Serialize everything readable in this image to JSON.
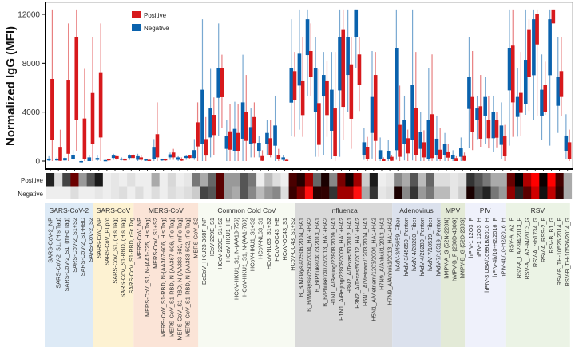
{
  "chart_data": {
    "type": "box",
    "ylabel": "Normalized IgG (MFI)",
    "ylim": [
      -650,
      13000
    ],
    "yticks": [
      0,
      4000,
      8000,
      12000
    ],
    "legend": {
      "placement": "top-left-inside",
      "entries": [
        {
          "name": "Positive",
          "color": "#d7191c"
        },
        {
          "name": "Negative",
          "color": "#0a62ad"
        }
      ]
    },
    "heatmap_rows": [
      "Positive",
      "Negative"
    ],
    "groups": [
      {
        "name": "SARS-CoV-2",
        "count": 6,
        "color": "#ddeaf6"
      },
      {
        "name": "SARS-CoV",
        "count": 5,
        "color": "#fdf2d2"
      },
      {
        "name": "MERS-CoV",
        "count": 8,
        "color": "#fbe4d7"
      },
      {
        "name": "Common Cold CoV",
        "count": 12,
        "color": "#f7faf2"
      },
      {
        "name": "Influenza",
        "count": 12,
        "color": "#d9d9d9"
      },
      {
        "name": "Adenovirus",
        "count": 6,
        "color": "#dbe1ed"
      },
      {
        "name": "MPV",
        "count": 3,
        "color": "#e3ead7"
      },
      {
        "name": "PIV",
        "count": 5,
        "color": "#eff1fb"
      },
      {
        "name": "RSV",
        "count": 8,
        "color": "#ebf3e5"
      }
    ],
    "categories": [
      "SARS-CoV-2_NP",
      "SARS-CoV-2_S1, (His Tag)",
      "SARS-CoV-2_S1, (mFc Tag)",
      "SARS-CoV-2_S1+S2",
      "SARS-CoV-2_S1-RBD",
      "SARS-CoV-2_S2",
      "SARS-CoV_NP",
      "SARS-CoV_PLpro",
      "SARS-CoV_S1, (His Tag)",
      "SARS-CoV_S1-RBD, (His Tag)",
      "SARS-CoV_S1-RBD, rFc Tag",
      "MERS-CoV_NP",
      "MERS-CoV_S1, N-(AA1-725, His Tag)",
      "MERS-CoV_S1+S2",
      "MERS-CoV_S1-RBD, N-(AA367-606, His Tag)",
      "MERS-CoV_S1-RBD, N-(AA367-606, rFc Tag)",
      "MERS-CoV_S1-RBD, N-(AA383-502, mFc Tag)",
      "MERS-CoV_S1-RBD, N-(AA383-502, rFc Tag)",
      "MERS-CoV_S2",
      "DcCoV_HKU23-368F_NP",
      "HCoV-229E_S1",
      "HCoV-229E_S1+S2",
      "HCoV-HKU1_HE",
      "HCoV-HKU1_S1, N-(AA13-756)",
      "HCoV-HKU1_S1, N-(AA1-760)",
      "HCoV-HKU1_S1+S2",
      "HCoV-NL63_S1",
      "HCoV-NL63_S1+S2",
      "HCoV-OC43_HE",
      "HCoV-OC43_S1",
      "HCoV-OC43_S1+S2",
      "B_B/Malaysia/2506/2004_HA1",
      "B_B/Malaysia/2506/2004_HA1+HA2",
      "B_B/Phuket/3073/2013_HA1",
      "B_B/Phuket/3073/2013_HA1+HA2",
      "H1N1_A/Beijing/22808/2009_HA1",
      "H1N1_A/Beijing/22808/2009_HA1+HA2",
      "H3N2_A/Texas/50/2012_HA1",
      "H3N2_A/Texas/50/2012_HA1+HA2",
      "H5N1_A/Vietnam/1203/2004_HA1",
      "H5N1_A/Vietnam/1203/2004_HA1+HA2",
      "H7N9_A/Anhui/1/2013_HA1",
      "H7N9_A/Anhui/1/2013_HA1+HA2",
      "hAdV-3/45659_Fiber",
      "hAdV-3/45659_Penton",
      "hAdV-4/28280_Fiber",
      "hAdV-4/28280_Penton",
      "hAdV-7/10519_Fiber",
      "hAdV-7/10519_Penton",
      "hMPV-A_G (52N-228N)",
      "hMPV-B_F (280D-480G)",
      "hMPV-B_G (52D-238S)",
      "hPIV-1 12O3_F",
      "hPIV-1 12O3_H",
      "hPIV-3 USA/10991B/2010_H",
      "hPIV-4b/10-H2/2016_F",
      "hPIV-4b/10-H2/2016_H",
      "RSV-A_A2_F",
      "RSV-A_LA2-94/2013_F",
      "RSV-A_LA2-94/2013_G",
      "RSV-A_rsb1734_G",
      "RSV-A_RSS-2_F",
      "RSV-B_B1_G",
      "RSV-B_TH-10526/2014_F",
      "RSV-B_TH-10526/2014_G"
    ],
    "series": [
      {
        "name": "Negative",
        "color": "#0a62ad",
        "stat_order": [
          "whisker_low",
          "q1",
          "q3",
          "whisker_high"
        ],
        "boxes": [
          [
            0,
            50,
            200,
            400
          ],
          [
            0,
            50,
            200,
            300
          ],
          [
            0,
            50,
            250,
            350
          ],
          [
            100,
            150,
            500,
            900
          ],
          [
            -150,
            -100,
            0,
            50
          ],
          [
            0,
            0,
            300,
            500
          ],
          [
            0,
            100,
            250,
            450
          ],
          [
            0,
            0,
            80,
            100
          ],
          [
            100,
            250,
            450,
            600
          ],
          [
            50,
            100,
            200,
            300
          ],
          [
            100,
            250,
            450,
            550
          ],
          [
            0,
            100,
            400,
            600
          ],
          [
            0,
            30,
            150,
            200
          ],
          [
            0,
            170,
            1100,
            1800
          ],
          [
            0,
            50,
            150,
            200
          ],
          [
            100,
            300,
            550,
            700
          ],
          [
            0,
            100,
            300,
            400
          ],
          [
            100,
            250,
            400,
            500
          ],
          [
            100,
            250,
            900,
            1800
          ],
          [
            0,
            1430,
            5830,
            11600
          ],
          [
            300,
            1930,
            4300,
            7600
          ],
          [
            2040,
            5170,
            7630,
            11260
          ],
          [
            0,
            1000,
            2040,
            3350
          ],
          [
            0,
            850,
            2630,
            4850
          ],
          [
            0,
            1830,
            4800,
            8700
          ],
          [
            300,
            1430,
            2780,
            4300
          ],
          [
            300,
            780,
            1500,
            2040
          ],
          [
            500,
            1430,
            2300,
            3350
          ],
          [
            0,
            1260,
            2910,
            5350
          ],
          [
            0,
            100,
            300,
            500
          ],
          [
            2090,
            4780,
            7630,
            11600
          ],
          [
            2570,
            6170,
            8780,
            12400
          ],
          [
            5350,
            8670,
            11600,
            12400
          ],
          [
            350,
            4040,
            7630,
            10130
          ],
          [
            520,
            5280,
            7040,
            8930
          ],
          [
            170,
            2480,
            5830,
            8930
          ],
          [
            350,
            5780,
            10170,
            12400
          ],
          [
            4040,
            7040,
            10170,
            12400
          ],
          [
            7630,
            10130,
            12400,
            12400
          ],
          [
            100,
            460,
            1540,
            2740
          ],
          [
            200,
            2300,
            5240,
            9000
          ],
          [
            0,
            170,
            890,
            1930
          ],
          [
            0,
            130,
            830,
            1720
          ],
          [
            100,
            890,
            9260,
            12400
          ],
          [
            50,
            1430,
            3350,
            5350
          ],
          [
            50,
            1700,
            6220,
            12400
          ],
          [
            0,
            1000,
            2350,
            4040
          ],
          [
            0,
            130,
            3350,
            7630
          ],
          [
            0,
            460,
            1830,
            3720
          ],
          [
            0,
            460,
            1430,
            2300
          ],
          [
            0,
            130,
            520,
            890
          ],
          [
            0,
            350,
            1040,
            1930
          ],
          [
            1040,
            4260,
            6870,
            10130
          ],
          [
            1800,
            3330,
            4300,
            5350
          ],
          [
            1430,
            3720,
            5240,
            6870
          ],
          [
            720,
            1870,
            4040,
            5350
          ],
          [
            170,
            1330,
            2910,
            4800
          ],
          [
            1260,
            5780,
            9260,
            12400
          ],
          [
            2000,
            3610,
            5240,
            7630
          ],
          [
            3780,
            4630,
            8280,
            12400
          ],
          [
            3350,
            7020,
            11600,
            12400
          ],
          [
            1760,
            3720,
            5830,
            8720
          ],
          [
            1260,
            7020,
            11600,
            12400
          ],
          [
            2300,
            4520,
            6870,
            10130
          ],
          [
            170,
            830,
            2090,
            3830
          ]
        ]
      },
      {
        "name": "Positive",
        "color": "#d7191c",
        "stat_order": [
          "whisker_low",
          "q1",
          "q3",
          "whisker_high"
        ],
        "boxes": [
          [
            0,
            1717,
            6717,
            12400
          ],
          [
            0,
            20,
            1100,
            2565
          ],
          [
            0,
            600,
            6650,
            11260
          ],
          [
            800,
            3390,
            10170,
            12400
          ],
          [
            0,
            130,
            3480,
            7600
          ],
          [
            0,
            1390,
            5560,
            10130
          ],
          [
            0,
            1930,
            7260,
            11260
          ],
          [
            0,
            50,
            150,
            200
          ],
          [
            50,
            200,
            400,
            500
          ],
          [
            0,
            50,
            150,
            250
          ],
          [
            150,
            250,
            500,
            600
          ],
          [
            0,
            100,
            300,
            500
          ],
          [
            0,
            20,
            100,
            150
          ],
          [
            0,
            300,
            2200,
            4800
          ],
          [
            0,
            50,
            150,
            200
          ],
          [
            100,
            300,
            700,
            1000
          ],
          [
            0,
            30,
            150,
            300
          ],
          [
            150,
            250,
            450,
            500
          ],
          [
            0,
            1200,
            3170,
            4800
          ],
          [
            0,
            450,
            1800,
            3600
          ],
          [
            500,
            2130,
            3780,
            5200
          ],
          [
            2740,
            5220,
            7630,
            8700
          ],
          [
            0,
            930,
            2430,
            4630
          ],
          [
            0,
            850,
            2300,
            4630
          ],
          [
            0,
            1650,
            4040,
            7040
          ],
          [
            300,
            1480,
            3600,
            4800
          ],
          [
            0,
            20,
            410,
            890
          ],
          [
            300,
            500,
            1870,
            3350
          ],
          [
            0,
            130,
            520,
            1000
          ],
          [
            0,
            20,
            100,
            200
          ],
          [
            1980,
            5020,
            7350,
            8930
          ],
          [
            1980,
            3760,
            6590,
            10130
          ],
          [
            5350,
            6910,
            9000,
            11260
          ],
          [
            350,
            1330,
            4740,
            7570
          ],
          [
            1980,
            3760,
            6590,
            8170
          ],
          [
            0,
            390,
            4300,
            8930
          ],
          [
            1760,
            4430,
            10720,
            12400
          ],
          [
            1000,
            3460,
            7910,
            10130
          ],
          [
            4090,
            6220,
            8720,
            10130
          ],
          [
            0,
            130,
            1170,
            1980
          ],
          [
            0,
            1650,
            7040,
            8930
          ],
          [
            0,
            0,
            170,
            300
          ],
          [
            0,
            20,
            350,
            500
          ],
          [
            0,
            350,
            2960,
            6170
          ],
          [
            0,
            630,
            1870,
            2570
          ],
          [
            0,
            460,
            4370,
            8930
          ],
          [
            0,
            300,
            1540,
            2520
          ],
          [
            0,
            240,
            3830,
            8720
          ],
          [
            0,
            130,
            930,
            2740
          ],
          [
            0,
            280,
            720,
            1430
          ],
          [
            0,
            0,
            240,
            400
          ],
          [
            0,
            20,
            410,
            700
          ],
          [
            900,
            2410,
            5240,
            9000
          ],
          [
            1130,
            1830,
            4480,
            7040
          ],
          [
            1040,
            1870,
            3350,
            5350
          ],
          [
            1060,
            1910,
            3350,
            4040
          ],
          [
            0,
            390,
            2020,
            2960
          ],
          [
            1980,
            4800,
            9440,
            12400
          ],
          [
            2090,
            3940,
            5570,
            8930
          ],
          [
            4090,
            6910,
            10720,
            11600
          ],
          [
            3650,
            9540,
            12040,
            12400
          ],
          [
            3790,
            4040,
            6260,
            8130
          ],
          [
            11260,
            11260,
            12400,
            12400
          ],
          [
            3650,
            5240,
            7350,
            10130
          ],
          [
            0,
            130,
            1540,
            2570
          ]
        ]
      }
    ],
    "heatmap": {
      "Positive": [
        "#222222",
        "#dddddd",
        "#444444",
        "#6b0000",
        "#999999",
        "#555555",
        "#1a1a1a",
        "#eeeeee",
        "#e6e6e6",
        "#eeeeee",
        "#e0e0e0",
        "#eeeeee",
        "#eeeeee",
        "#aaaaaa",
        "#eeeeee",
        "#d8d8d8",
        "#eeeeee",
        "#e6e6e6",
        "#777777",
        "#aaaaaa",
        "#666666",
        "#5a0000",
        "#999999",
        "#999999",
        "#555555",
        "#777777",
        "#eeeeee",
        "#bbbbbb",
        "#dddddd",
        "#eeeeee",
        "#4a0000",
        "#220000",
        "#a00000",
        "#666666",
        "#1a0000",
        "#888888",
        "#7a0000",
        "#100000",
        "#a00000",
        "#cccccc",
        "#1a1a1a",
        "#eeeeee",
        "#e6e6e6",
        "#888888",
        "#aaaaaa",
        "#555555",
        "#bbbbbb",
        "#666666",
        "#dddddd",
        "#dddddd",
        "#e6e6e6",
        "#dddddd",
        "#333333",
        "#555555",
        "#777777",
        "#aaaaaa",
        "#aaaaaa",
        "#660000",
        "#000000",
        "#b00000",
        "#ff0000",
        "#0a0000",
        "#ff0000",
        "#440000",
        "#aaaaaa"
      ],
      "Negative": [
        "#eeeeee",
        "#eeeeee",
        "#eeeeee",
        "#dddddd",
        "#eeeeee",
        "#eeeeee",
        "#e6e6e6",
        "#eeeeee",
        "#e6e6e6",
        "#dddddd",
        "#eeeeee",
        "#dddddd",
        "#eeeeee",
        "#dddddd",
        "#eeeeee",
        "#dddddd",
        "#e6e6e6",
        "#dddddd",
        "#cccccc",
        "#444444",
        "#555555",
        "#5a0000",
        "#999999",
        "#aaaaaa",
        "#555555",
        "#888888",
        "#bbbbbb",
        "#999999",
        "#888888",
        "#dddddd",
        "#3a0000",
        "#800000",
        "#ff1010",
        "#2a0000",
        "#300000",
        "#333333",
        "#a00000",
        "#a00000",
        "#ff1010",
        "#aaaaaa",
        "#333333",
        "#e6e6e6",
        "#dddddd",
        "#1a0000",
        "#888888",
        "#333333",
        "#999999",
        "#777777",
        "#bbbbbb",
        "#bbbbbb",
        "#e6e6e6",
        "#cccccc",
        "#1a0000",
        "#444444",
        "#222222",
        "#777777",
        "#999999",
        "#900000",
        "#222222",
        "#5a0000",
        "#d00000",
        "#111111",
        "#c00000",
        "#300000",
        "#aaaaaa"
      ]
    }
  }
}
